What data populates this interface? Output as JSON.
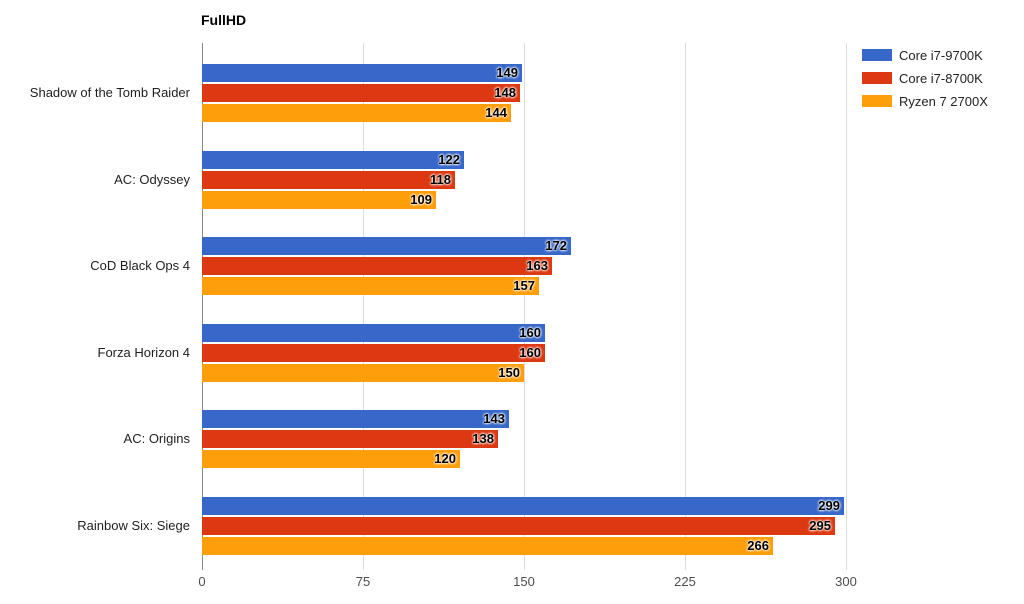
{
  "title": "FullHD",
  "chart_data": {
    "type": "bar",
    "orientation": "horizontal",
    "title": "FullHD",
    "xlabel": "",
    "ylabel": "",
    "xlim": [
      0,
      300
    ],
    "xticks": [
      0,
      75,
      150,
      225,
      300
    ],
    "grid": true,
    "legend_position": "right-top",
    "value_labels": "inside-end",
    "categories": [
      "Shadow of the Tomb Raider",
      "AC: Odyssey",
      "CoD Black Ops 4",
      "Forza Horizon 4",
      "AC: Origins",
      "Rainbow Six: Siege"
    ],
    "series": [
      {
        "name": "Core i7-9700K",
        "color": "#3767c9",
        "values": [
          149,
          122,
          172,
          160,
          143,
          299
        ]
      },
      {
        "name": "Core i7-8700K",
        "color": "#dc3912",
        "values": [
          148,
          118,
          163,
          160,
          138,
          295
        ]
      },
      {
        "name": "Ryzen 7 2700X",
        "color": "#ff9e0b",
        "values": [
          144,
          109,
          157,
          150,
          120,
          266
        ]
      }
    ],
    "colors": {
      "gridline": "#dddddd",
      "zero_line": "#888888",
      "axis_text": "#4d4d4d",
      "category_text": "#1f1f1f",
      "value_text": "#000000"
    }
  }
}
